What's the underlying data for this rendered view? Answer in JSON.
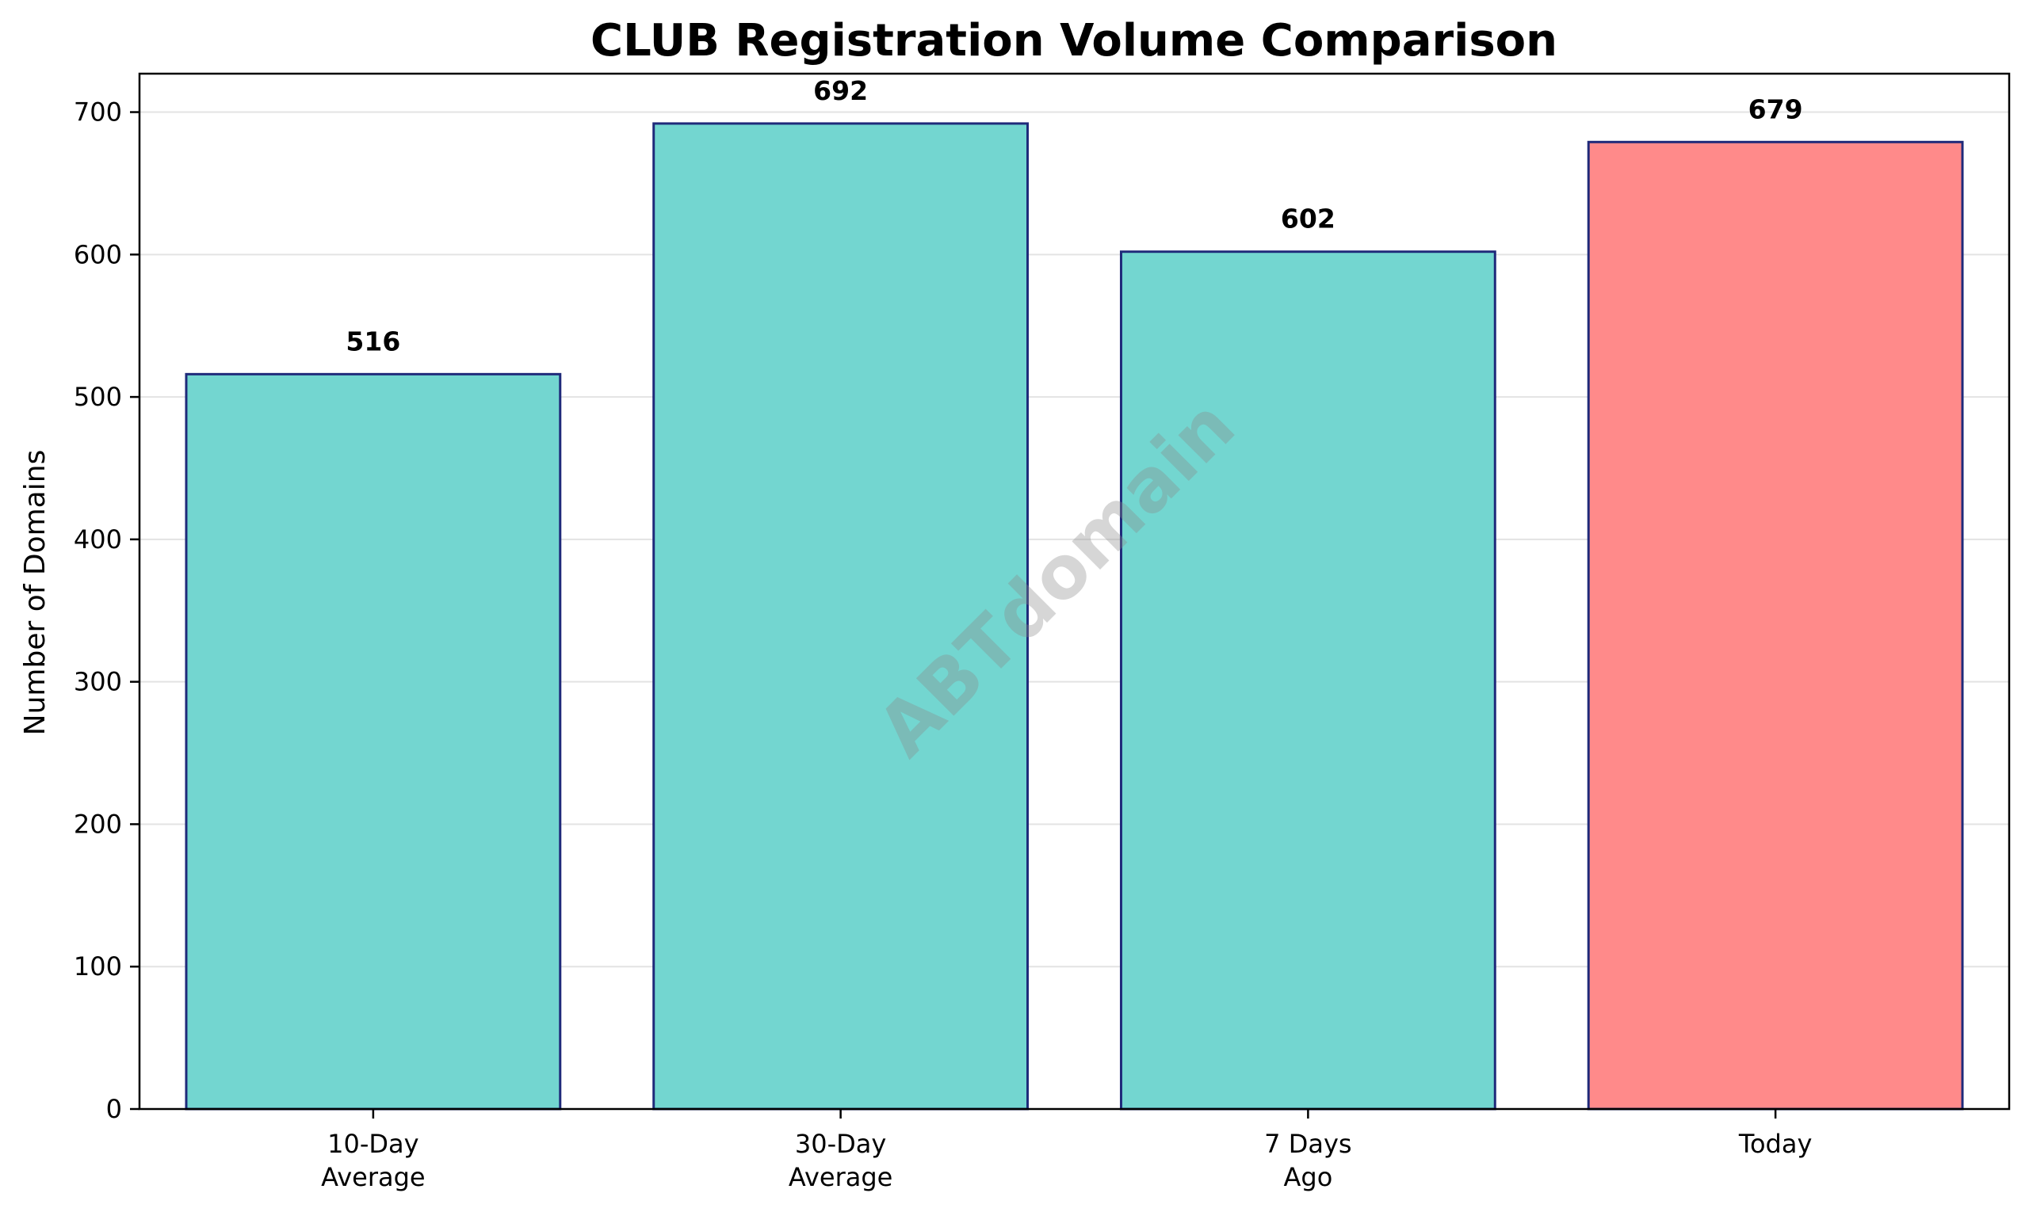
{
  "chart_data": {
    "type": "bar",
    "title": "CLUB Registration Volume Comparison",
    "xlabel": "",
    "ylabel": "Number of Domains",
    "categories": [
      "10-Day\nAverage",
      "30-Day\nAverage",
      "7 Days\nAgo",
      "Today"
    ],
    "values": [
      516,
      692,
      602,
      679
    ],
    "data_labels": [
      "516",
      "692",
      "602",
      "679"
    ],
    "bar_colors": [
      "#73d6d0",
      "#73d6d0",
      "#73d6d0",
      "#ff8a8a"
    ],
    "bar_edge_color": "#1f2a7a",
    "ylim": [
      0,
      727
    ],
    "yticks": [
      0,
      100,
      200,
      300,
      400,
      500,
      600,
      700
    ],
    "grid": "horizontal",
    "legend": "none"
  },
  "watermark": {
    "text": "ABTdomain"
  }
}
